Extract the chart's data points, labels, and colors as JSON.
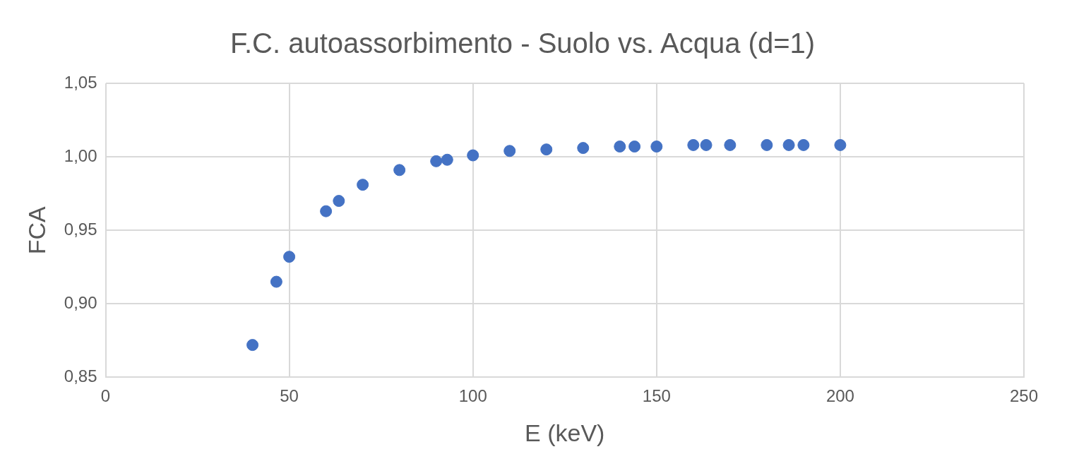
{
  "chart_data": {
    "type": "scatter",
    "title": "F.C. autoassorbimento - Suolo vs. Acqua (d=1)",
    "xlabel": "E (keV)",
    "ylabel": "FCA",
    "series": [
      {
        "color": "#4472c4",
        "x": [
          40,
          46.5,
          50,
          60,
          63.5,
          70,
          80,
          90,
          93,
          100,
          110,
          120,
          130,
          140,
          144,
          150,
          160,
          163.5,
          170,
          180,
          186,
          190,
          200
        ],
        "values": [
          0.872,
          0.915,
          0.932,
          0.963,
          0.97,
          0.981,
          0.991,
          0.997,
          0.998,
          1.001,
          1.004,
          1.005,
          1.006,
          1.007,
          1.007,
          1.007,
          1.008,
          1.008,
          1.008,
          1.008,
          1.008,
          1.008,
          1.008
        ]
      }
    ],
    "xlim": [
      0,
      250
    ],
    "xticks": [
      0,
      50,
      100,
      150,
      200,
      250
    ],
    "ylim": [
      0.85,
      1.05
    ],
    "yticks": [
      {
        "value": 0.85,
        "label": "0,85"
      },
      {
        "value": 0.9,
        "label": "0,90"
      },
      {
        "value": 0.95,
        "label": "0,95"
      },
      {
        "value": 1.0,
        "label": "1,00"
      },
      {
        "value": 1.05,
        "label": "1,05"
      }
    ],
    "grid": true,
    "legend": false,
    "marker": "circle"
  }
}
